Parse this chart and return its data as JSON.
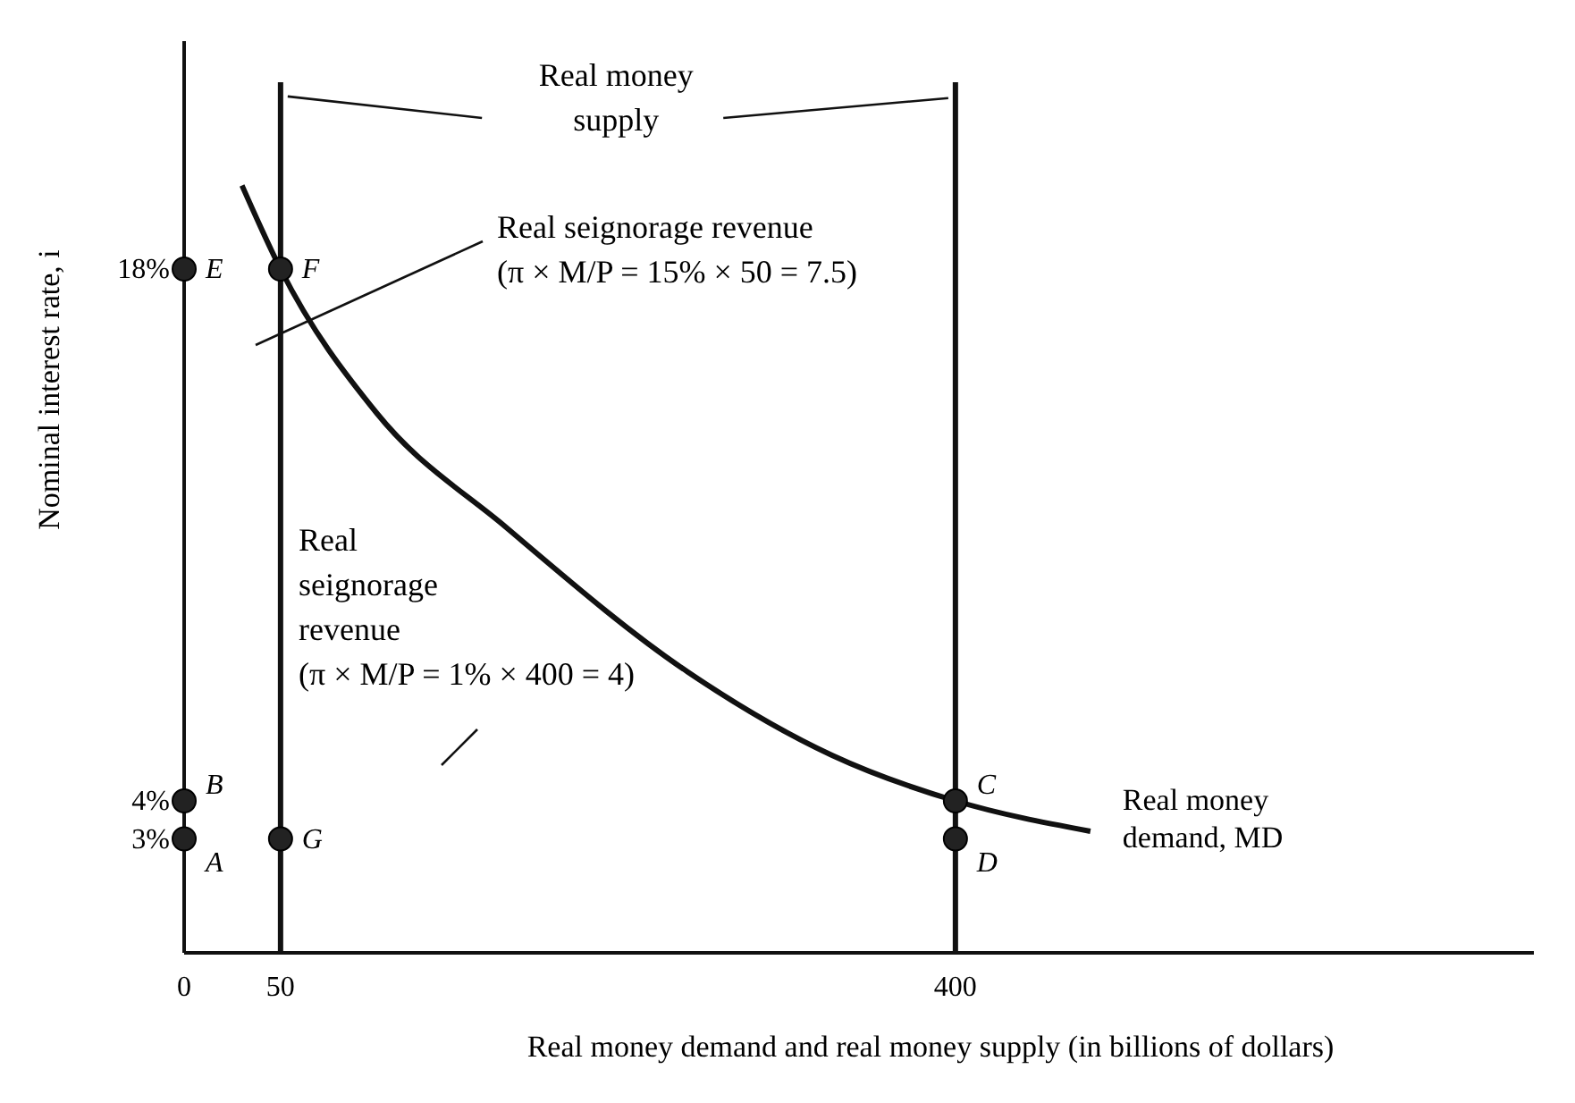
{
  "chart_data": {
    "type": "line",
    "xlabel": "Real money demand and real money supply (in billions of dollars)",
    "ylabel": "Nominal interest rate, i",
    "xlim": [
      0,
      700
    ],
    "xticks": [
      0,
      50,
      400
    ],
    "ylim": [
      0,
      24
    ],
    "yticks": [
      {
        "value": 3,
        "label": "3%"
      },
      {
        "value": 4,
        "label": "4%"
      },
      {
        "value": 18,
        "label": "18%"
      }
    ],
    "grid": false,
    "legend": false,
    "series": [
      {
        "name": "Real money demand, MD",
        "color": "#111111",
        "marker": "none",
        "x": [
          30,
          50,
          100,
          167,
          261,
          336,
          400,
          470
        ],
        "values": [
          20.2,
          18,
          14.2,
          11.2,
          7.4,
          5.2,
          4,
          3.2
        ]
      },
      {
        "type": "scatter",
        "color": "#222222",
        "marker": "circle",
        "x": [
          0,
          0,
          0,
          50,
          50,
          400,
          400
        ],
        "values": [
          18,
          4,
          3,
          18,
          3,
          4,
          3
        ]
      }
    ],
    "ref_lines": [
      {
        "axis": "x",
        "value": 50,
        "color": "#111111"
      },
      {
        "axis": "x",
        "value": 400,
        "color": "#111111"
      }
    ],
    "annotations": [
      {
        "text": "E",
        "x": 0,
        "y": 18
      },
      {
        "text": "B",
        "x": 0,
        "y": 4
      },
      {
        "text": "A",
        "x": 0,
        "y": 3
      },
      {
        "text": "F",
        "x": 50,
        "y": 18
      },
      {
        "text": "G",
        "x": 50,
        "y": 3
      },
      {
        "text": "C",
        "x": 400,
        "y": 4
      },
      {
        "text": "D",
        "x": 400,
        "y": 3
      },
      {
        "text": "Real money supply",
        "x": 400,
        "y": 22.5
      },
      "Real seignorage revenue (π × M/P = 15% × 50 = 7.5)",
      "Real seignorage revenue (π × M/P = 1% × 400 = 4)"
    ]
  }
}
